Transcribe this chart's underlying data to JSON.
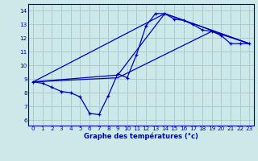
{
  "xlabel": "Graphe des températures (°c)",
  "background_color": "#cce8e8",
  "line_color": "#0000bb",
  "grid_color": "#aacccc",
  "x_ticks": [
    0,
    1,
    2,
    3,
    4,
    5,
    6,
    7,
    8,
    9,
    10,
    11,
    12,
    13,
    14,
    15,
    16,
    17,
    18,
    19,
    20,
    21,
    22,
    23
  ],
  "y_ticks": [
    6,
    7,
    8,
    9,
    10,
    11,
    12,
    13,
    14
  ],
  "xlim": [
    -0.5,
    23.5
  ],
  "ylim": [
    5.6,
    14.5
  ],
  "curve1_x": [
    0,
    1,
    2,
    3,
    4,
    5,
    6,
    7,
    8,
    9,
    10,
    11,
    12,
    13,
    14,
    15,
    16,
    17,
    18,
    19,
    20,
    21,
    22,
    23
  ],
  "curve1_y": [
    8.8,
    8.7,
    8.4,
    8.1,
    8.0,
    7.7,
    6.5,
    6.4,
    7.8,
    9.4,
    9.1,
    10.8,
    12.9,
    13.8,
    13.8,
    13.4,
    13.3,
    13.0,
    12.6,
    12.5,
    12.2,
    11.6,
    11.6,
    11.6
  ],
  "curve2_x": [
    0,
    14,
    23
  ],
  "curve2_y": [
    8.8,
    13.8,
    11.6
  ],
  "curve3_x": [
    0,
    9,
    14,
    23
  ],
  "curve3_y": [
    8.8,
    9.3,
    13.8,
    11.6
  ],
  "curve4_x": [
    0,
    9,
    19,
    23
  ],
  "curve4_y": [
    8.8,
    9.1,
    12.5,
    11.6
  ]
}
